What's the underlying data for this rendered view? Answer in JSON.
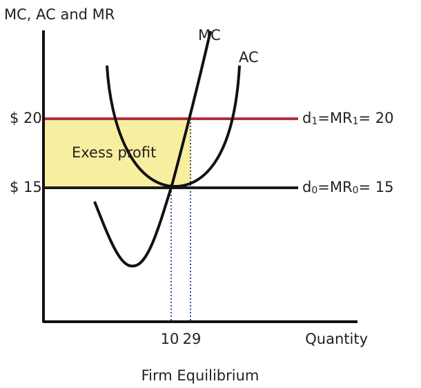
{
  "y_axis_label": "MC, AC and MR",
  "x_axis_label": "Quantity",
  "caption": "Firm Equilibrium",
  "price_labels": [
    "$ 20",
    "$ 15"
  ],
  "quantity_labels": [
    "10",
    "29"
  ],
  "curve_labels": {
    "mc": "MC",
    "ac": "AC"
  },
  "area_label": "Exess profit",
  "demand_labels": [
    {
      "d": "d",
      "d_sub": "1",
      "mr": "=MR",
      "mr_sub": "1",
      "value": "= 20"
    },
    {
      "d": "d",
      "d_sub": "0",
      "mr": "=MR",
      "mr_sub": "0",
      "value": "= 15"
    }
  ]
}
